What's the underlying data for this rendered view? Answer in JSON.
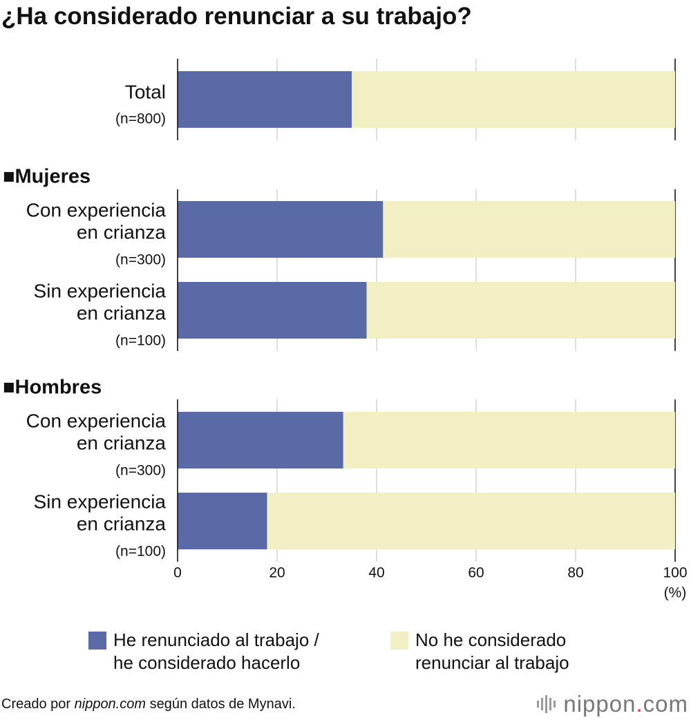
{
  "colors": {
    "considered": "#5a6aa6",
    "not_considered": "#f2efc5",
    "grid": "#c8c8c8",
    "axis": "#111111",
    "logo_dot": "#e4323f"
  },
  "source": {
    "prefix": "Creado por ",
    "site": "nippon.com",
    "suffix": " según datos de Mynavi."
  },
  "logo": {
    "part1": "nippon",
    "dot": ".",
    "part2": "com"
  },
  "chart_data": {
    "type": "bar",
    "orientation": "horizontal",
    "stacked": true,
    "title": "¿Ha considerado renunciar a su trabajo?",
    "unit": "(%)",
    "xlim": [
      0,
      100
    ],
    "xticks": [
      "0",
      "20",
      "40",
      "60",
      "80",
      "100"
    ],
    "grid": true,
    "legend_position": "bottom",
    "series": [
      {
        "name": "He renunciado al trabajo /\nhe considerado hacerlo",
        "color": "#5a6aa6"
      },
      {
        "name": "No he considerado\nrenunciar al trabajo",
        "color": "#f2efc5"
      }
    ],
    "groups": [
      {
        "label": "",
        "rows": [
          {
            "label": [
              "Total"
            ],
            "n": "(n=800)",
            "values": [
              35,
              65
            ]
          }
        ]
      },
      {
        "label": "■Mujeres",
        "rows": [
          {
            "label": [
              "Con experiencia",
              "en crianza"
            ],
            "n": "(n=300)",
            "values": [
              41.3,
              58.7
            ]
          },
          {
            "label": [
              "Sin experiencia",
              "en crianza"
            ],
            "n": "(n=100)",
            "values": [
              38,
              62
            ]
          }
        ]
      },
      {
        "label": "■Hombres",
        "rows": [
          {
            "label": [
              "Con experiencia",
              "en crianza"
            ],
            "n": "(n=300)",
            "values": [
              33.3,
              66.7
            ]
          },
          {
            "label": [
              "Sin experiencia",
              "en crianza"
            ],
            "n": "(n=100)",
            "values": [
              18,
              82
            ]
          }
        ]
      }
    ]
  }
}
